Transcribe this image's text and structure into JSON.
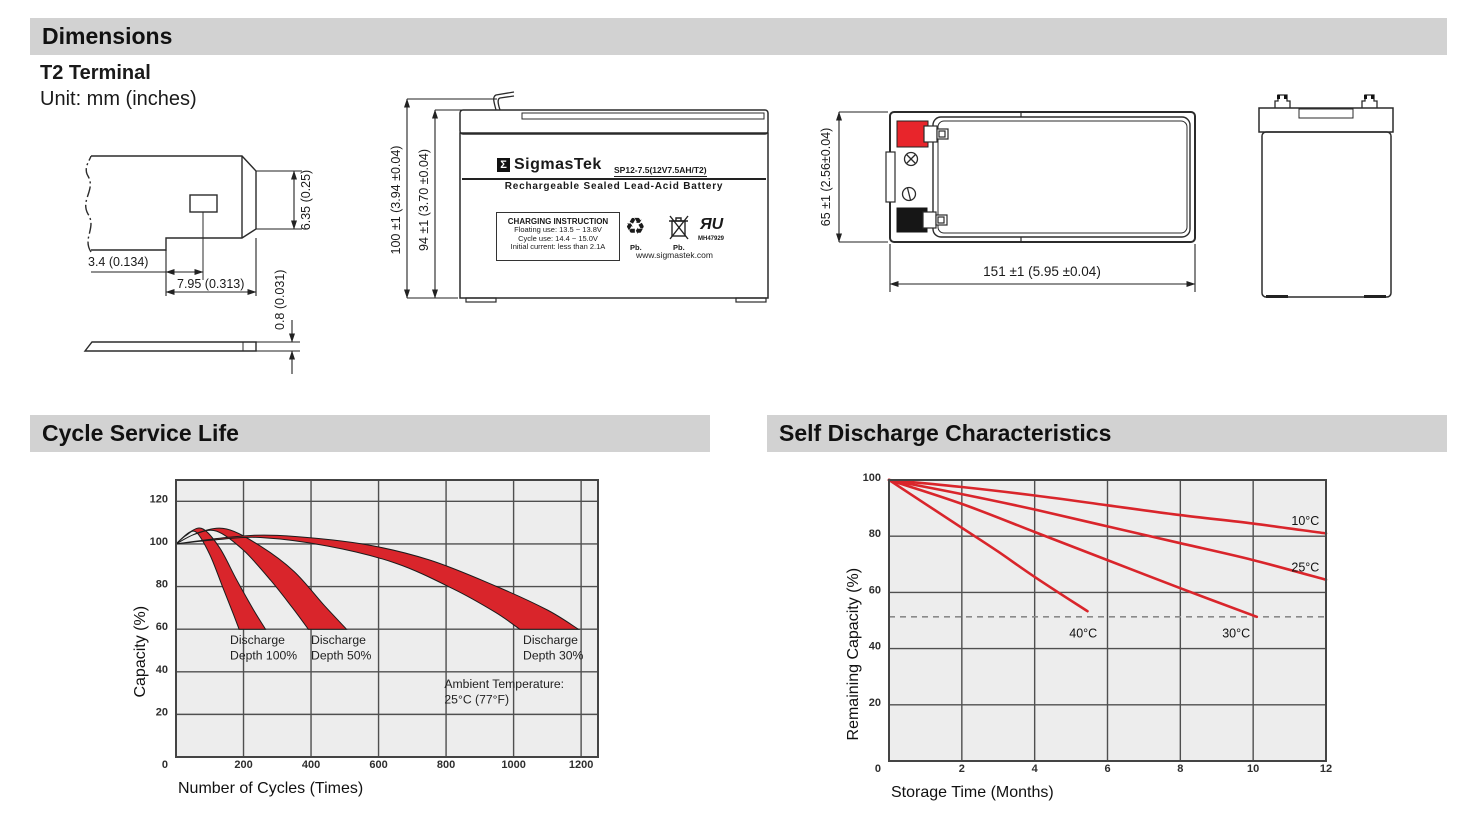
{
  "header": {
    "dimensions_title": "Dimensions",
    "terminal_type": "T2 Terminal",
    "unit_note": "Unit: mm (inches)",
    "cycle_title": "Cycle Service Life",
    "self_discharge_title": "Self Discharge Characteristics"
  },
  "terminal_drawing": {
    "tab_height": "6.35 (0.25)",
    "tab_offset": "3.4 (0.134)",
    "tab_length": "7.95 (0.313)",
    "thickness": "0.8 (0.031)"
  },
  "front_view": {
    "height_overall": "100 ±1 (3.94 ±0.04)",
    "height_case": "94 ±1 (3.70 ±0.04)",
    "logo_sigma": "Σ",
    "brand": "SigmasTek",
    "model": "SP12-7.5(12V7.5AH/T2)",
    "subtitle": "Rechargeable Sealed Lead-Acid Battery",
    "charging_title": "CHARGING INSTRUCTION",
    "charging_line1": "Floating use: 13.5 ~ 13.8V",
    "charging_line2": "Cycle use: 14.4 ~ 15.0V",
    "charging_line3": "Initial current: less than 2.1A",
    "pb_recycle": "Pb.",
    "pb_bin": "Pb.",
    "ul_letters": "ЯU",
    "ul_code": "MH47929",
    "website": "www.sigmastek.com"
  },
  "top_view": {
    "height": "65 ±1 (2.56±0.04)",
    "length": "151 ±1 (5.95 ±0.04)"
  },
  "colors": {
    "accent_red": "#d9252b",
    "bar_gray": "#d2d2d2",
    "plot_bg": "#ededed",
    "grid": "#4f4f4f"
  },
  "chart_data": [
    {
      "id": "cycle",
      "type": "area",
      "title": "Cycle Service Life",
      "xlabel": "Number of Cycles (Times)",
      "ylabel": "Capacity (%)",
      "xlim": [
        0,
        1250
      ],
      "ylim": [
        0,
        130
      ],
      "xticks": [
        200,
        400,
        600,
        800,
        1000,
        1200
      ],
      "yticks": [
        0,
        20,
        40,
        60,
        80,
        100,
        120
      ],
      "grid": true,
      "bands": [
        {
          "name": "Discharge Depth 100%",
          "upper": [
            [
              0,
              100
            ],
            [
              40,
              105.5
            ],
            [
              80,
              107
            ],
            [
              130,
              98
            ],
            [
              180,
              83
            ],
            [
              230,
              69
            ],
            [
              265,
              60
            ]
          ],
          "lower": [
            [
              0,
              100
            ],
            [
              30,
              104
            ],
            [
              60,
              105.5
            ],
            [
              100,
              95
            ],
            [
              140,
              79
            ],
            [
              170,
              67
            ],
            [
              187,
              60
            ]
          ]
        },
        {
          "name": "Discharge Depth 50%",
          "upper": [
            [
              0,
              100
            ],
            [
              70,
              105.5
            ],
            [
              150,
              107
            ],
            [
              250,
              99
            ],
            [
              350,
              87
            ],
            [
              440,
              71
            ],
            [
              505,
              60
            ]
          ],
          "lower": [
            [
              0,
              100
            ],
            [
              55,
              104.5
            ],
            [
              120,
              106
            ],
            [
              200,
              97
            ],
            [
              280,
              83
            ],
            [
              345,
              70
            ],
            [
              392,
              60
            ]
          ]
        },
        {
          "name": "Discharge Depth 30%",
          "upper": [
            [
              0,
              100
            ],
            [
              150,
              103
            ],
            [
              300,
              104
            ],
            [
              550,
              100
            ],
            [
              750,
              92.5
            ],
            [
              950,
              80
            ],
            [
              1100,
              69
            ],
            [
              1192,
              60
            ]
          ],
          "lower": [
            [
              0,
              100
            ],
            [
              120,
              102
            ],
            [
              250,
              103
            ],
            [
              450,
              99
            ],
            [
              650,
              91
            ],
            [
              820,
              79
            ],
            [
              945,
              68
            ],
            [
              1018,
              60
            ]
          ]
        }
      ],
      "annotations": [
        {
          "x": 160,
          "y": 53,
          "lines": [
            "Discharge",
            "Depth 100%"
          ]
        },
        {
          "x": 400,
          "y": 53,
          "lines": [
            "Discharge",
            "Depth 50%"
          ]
        },
        {
          "x": 1028,
          "y": 53,
          "lines": [
            "Discharge",
            "Depth 30%"
          ]
        },
        {
          "x": 795,
          "y": 32.5,
          "lines": [
            "Ambient Temperature:",
            "25°C (77°F)"
          ]
        }
      ]
    },
    {
      "id": "self_discharge",
      "type": "line",
      "title": "Self Discharge Characteristics",
      "xlabel": "Storage Time (Months)",
      "ylabel": "Remaining Capacity (%)",
      "xlim": [
        0,
        12
      ],
      "ylim": [
        0,
        100
      ],
      "xticks": [
        2,
        4,
        6,
        8,
        10,
        12
      ],
      "yticks": [
        0,
        20,
        40,
        60,
        80,
        100
      ],
      "grid": true,
      "dashed_line_y": 51.3,
      "series": [
        {
          "name": "10°C",
          "points": [
            [
              0,
              100
            ],
            [
              2,
              97.5
            ],
            [
              4,
              94.5
            ],
            [
              6,
              91
            ],
            [
              8,
              87.5
            ],
            [
              10,
              84.5
            ],
            [
              12,
              81
            ]
          ],
          "label_at": [
            11.05,
            84
          ]
        },
        {
          "name": "25°C",
          "points": [
            [
              0,
              100
            ],
            [
              2,
              95
            ],
            [
              4,
              89.5
            ],
            [
              6,
              83.5
            ],
            [
              8,
              77.5
            ],
            [
              10,
              71.5
            ],
            [
              12,
              64.5
            ]
          ],
          "label_at": [
            11.05,
            67.5
          ]
        },
        {
          "name": "30°C",
          "points": [
            [
              0,
              100
            ],
            [
              2,
              91.5
            ],
            [
              4,
              81.5
            ],
            [
              6,
              71.5
            ],
            [
              8,
              61.5
            ],
            [
              10.1,
              51.3
            ]
          ],
          "label_at": [
            9.15,
            44
          ]
        },
        {
          "name": "40°C",
          "points": [
            [
              0,
              100
            ],
            [
              1,
              91.5
            ],
            [
              2,
              83
            ],
            [
              3,
              74.5
            ],
            [
              4,
              65.5
            ],
            [
              5.45,
              53.3
            ]
          ],
          "label_at": [
            4.95,
            44
          ]
        }
      ]
    }
  ]
}
